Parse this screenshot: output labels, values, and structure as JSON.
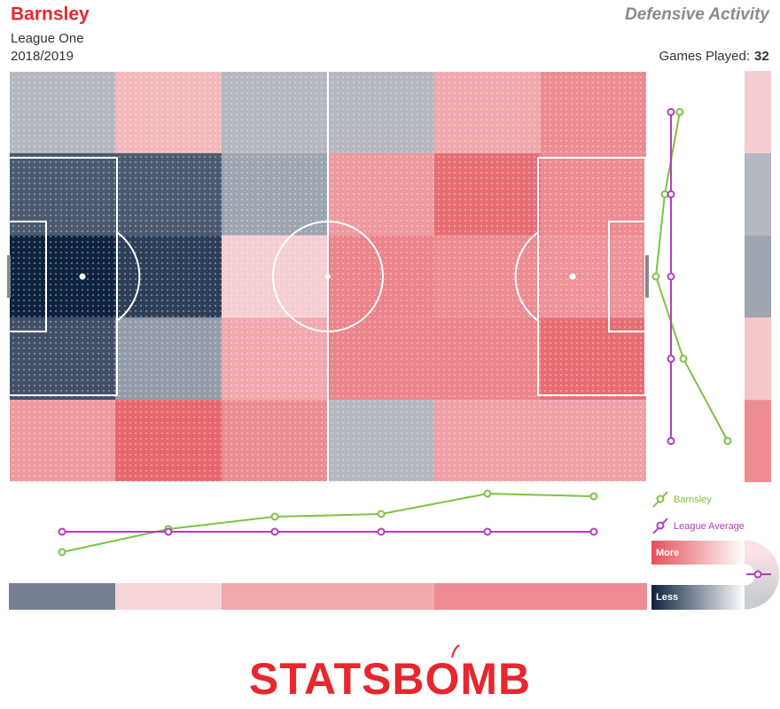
{
  "chart_data": {
    "type": "heatmap",
    "title": "Barnsley",
    "subtitle": [
      "League One",
      "2018/2019"
    ],
    "metric": "Defensive Activity",
    "games_label": "Games Played:",
    "games": 32,
    "grid": [
      [
        -0.2,
        0.3,
        -0.2,
        -0.2,
        0.4,
        0.6
      ],
      [
        -0.7,
        -0.7,
        -0.3,
        0.5,
        0.8,
        0.6
      ],
      [
        -1,
        -0.85,
        0.15,
        0.65,
        0.6,
        0.55
      ],
      [
        -0.75,
        -0.35,
        0.4,
        0.65,
        0.65,
        0.8
      ],
      [
        0.5,
        0.85,
        0.6,
        -0.2,
        0.45,
        0.45
      ]
    ],
    "column_totals": [
      -0.5,
      0.1,
      0.4,
      0.4,
      0.6,
      0.6
    ],
    "row_totals": [
      0.15,
      -0.2,
      -0.3,
      0.2,
      0.6
    ],
    "profile_lim": [
      -30,
      70
    ],
    "series": [
      {
        "name": "Barnsley",
        "color": "#7dc242",
        "columns": [
          -23,
          3,
          17,
          20,
          43,
          40
        ],
        "rows": [
          10,
          -7,
          -17,
          14,
          64
        ]
      },
      {
        "name": "League Average",
        "color": "#b23dbd",
        "columns": [
          0,
          0,
          0,
          0,
          0,
          0
        ],
        "rows": [
          0,
          0,
          0,
          0,
          0
        ]
      }
    ],
    "scale_labels": {
      "high": "More",
      "low": "Less"
    },
    "colors": {
      "high": "#e4505a",
      "low": "#0e2240"
    },
    "logo": "STATSBOMB"
  }
}
